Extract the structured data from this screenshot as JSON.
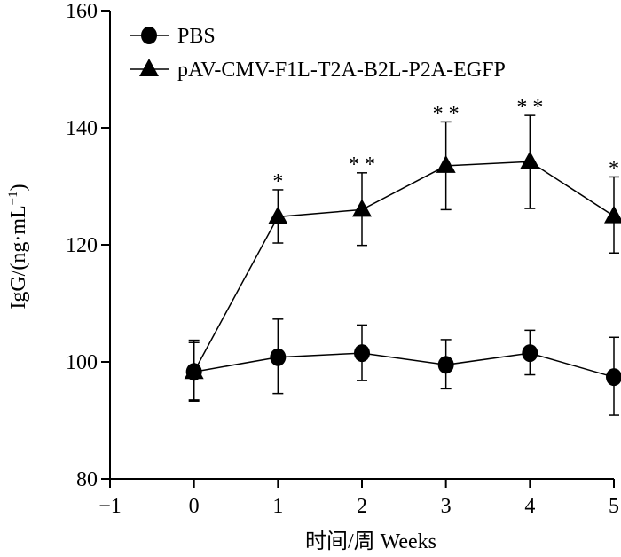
{
  "chart_data": {
    "type": "line",
    "title": "",
    "xlabel": "时间/周 Weeks",
    "ylabel": "IgG/(ng·mL",
    "ylabel_sup": "−1",
    "ylabel_close": ")",
    "xlim": [
      -1,
      5
    ],
    "ylim": [
      80,
      160
    ],
    "xticks": [
      -1,
      0,
      1,
      2,
      3,
      4,
      5
    ],
    "xtick_labels": [
      "−1",
      "0",
      "1",
      "2",
      "3",
      "4",
      "5"
    ],
    "yticks": [
      80,
      100,
      120,
      140,
      160
    ],
    "ytick_labels": [
      "80",
      "100",
      "120",
      "140",
      "160"
    ],
    "grid": false,
    "legend_position": "top-left",
    "series": [
      {
        "name": "PBS",
        "marker": "circle",
        "x": [
          0,
          1,
          2,
          3,
          4,
          5
        ],
        "y": [
          98.3,
          100.8,
          101.5,
          99.5,
          101.5,
          97.4
        ],
        "err_upper": [
          103.7,
          107.3,
          106.3,
          103.8,
          105.4,
          104.2
        ],
        "err_lower": [
          93.5,
          94.6,
          96.8,
          95.4,
          97.8,
          90.9
        ]
      },
      {
        "name": "pAV-CMV-F1L-T2A-B2L-P2A-EGFP",
        "marker": "triangle",
        "x": [
          0,
          1,
          2,
          3,
          4,
          5
        ],
        "y": [
          98.3,
          124.8,
          126.0,
          133.5,
          134.2,
          124.9
        ],
        "err_upper": [
          103.3,
          129.4,
          132.3,
          141.0,
          142.1,
          131.6
        ],
        "err_lower": [
          93.3,
          120.3,
          119.9,
          126.0,
          126.2,
          118.6
        ],
        "significance": [
          "",
          "*",
          "* *",
          "* *",
          "* *",
          "*"
        ]
      }
    ]
  }
}
